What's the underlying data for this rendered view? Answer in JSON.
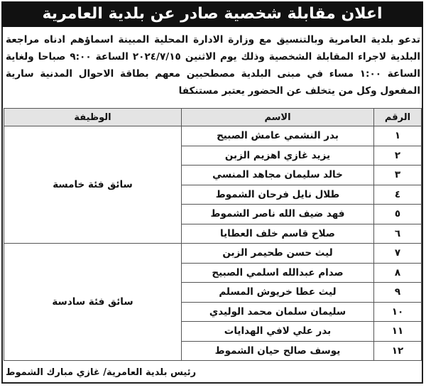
{
  "title": "اعلان مقابلة شخصية صادر عن بلدية العامرية",
  "body": "تدعو بلدية العامرية وبالتنسيق مع وزارة الادارة المحلية المبينة اسماؤهم ادناه مراجعة البلدية لاجراء المقابلة الشخصية وذلك يوم الاثنين ٢٠٢٤/٧/١٥ الساعة ٩:٠٠ صباحا ولغاية الساعة ١:٠٠ مساء في مبنى البلدية مصطحبين معهم بطاقة الاحوال المدنية سارية المفعول وكل من يتخلف عن الحضور يعتبر مستنكفا",
  "table": {
    "headers": {
      "number": "الرقم",
      "name": "الاسم",
      "job": "الوظيفة"
    },
    "groups": [
      {
        "job": "سائق فئة خامسة",
        "rows": [
          {
            "number": "١",
            "name": "بدر النشمي عامش الصبيح"
          },
          {
            "number": "٢",
            "name": "يزيد غازي اهزيم الزبن"
          },
          {
            "number": "٣",
            "name": "خالد سليمان مجاهد المنسي"
          },
          {
            "number": "٤",
            "name": "طلال نايل فرحان الشموط"
          },
          {
            "number": "٥",
            "name": "فهد ضيف الله ناصر الشموط"
          },
          {
            "number": "٦",
            "name": "صلاح قاسم خلف العطايا"
          }
        ]
      },
      {
        "job": "سائق فئة سادسة",
        "rows": [
          {
            "number": "٧",
            "name": "ليث حسن طحيمر الزبن"
          },
          {
            "number": "٨",
            "name": "صدام عبدالله اسلمي الصبيح"
          },
          {
            "number": "٩",
            "name": "ليث عطا خريوش المسلم"
          },
          {
            "number": "١٠",
            "name": "سليمان سلمان محمد الوليدي"
          },
          {
            "number": "١١",
            "name": "بدر علي لافي الهدايات"
          },
          {
            "number": "١٢",
            "name": "يوسف صالح حيان الشموط"
          }
        ]
      }
    ]
  },
  "signature": "رئيس بلدية العامرية/ غازي مبارك الشموط"
}
